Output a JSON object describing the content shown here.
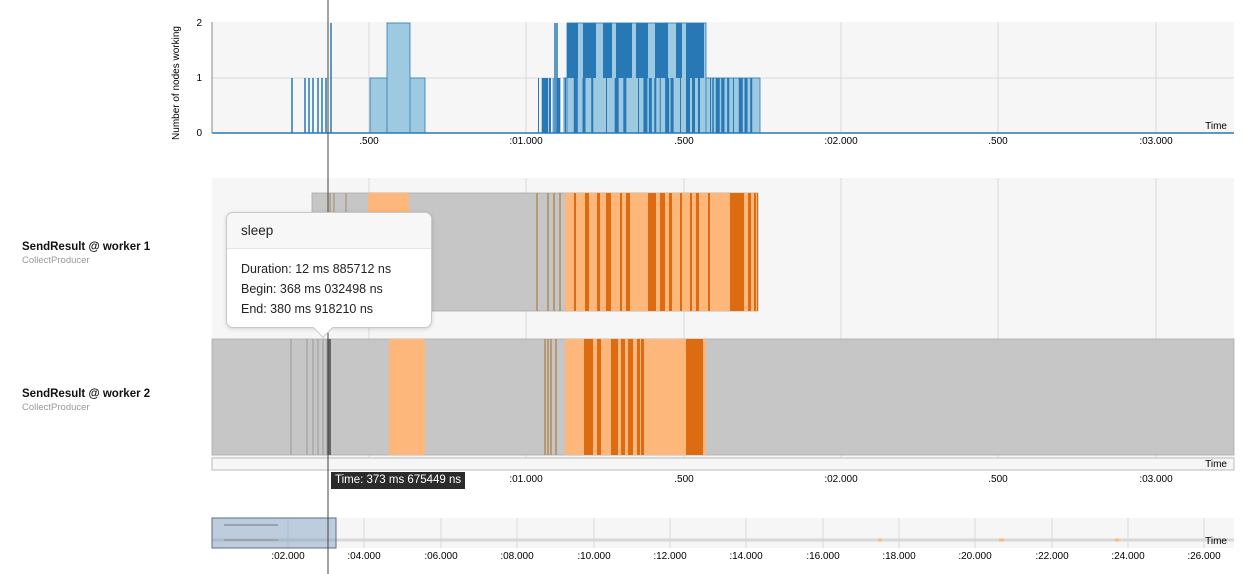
{
  "workload_chart": {
    "ylabel": "Number of nodes working",
    "y_ticks": [
      "2",
      "1",
      "0"
    ],
    "x_label": "Time",
    "x_ticks": [
      ".500",
      ":01.000",
      ".500",
      ":02.000",
      ".500",
      ":03.000"
    ]
  },
  "swimlanes": [
    {
      "title": "SendResult @ worker 1",
      "subtitle": "CollectProducer"
    },
    {
      "title": "SendResult @ worker 2",
      "subtitle": "CollectProducer"
    }
  ],
  "timeline": {
    "x_label": "Time",
    "x_ticks": [
      ".500",
      ":01.000",
      ".500",
      ":02.000",
      ".500",
      ":03.000"
    ]
  },
  "overview": {
    "x_label": "Time",
    "x_ticks": [
      ":02.000",
      ":04.000",
      ":06.000",
      ":08.000",
      ":10.000",
      ":12.000",
      ":14.000",
      ":16.000",
      ":18.000",
      ":20.000",
      ":22.000",
      ":24.000",
      ":26.000"
    ]
  },
  "tooltip": {
    "title": "sleep",
    "duration": "Duration: 12 ms 885712 ns",
    "begin": "Begin: 368 ms 032498 ns",
    "end": "End: 380 ms 918210 ns"
  },
  "cursor": {
    "time_label": "Time: 373 ms 675449 ns"
  },
  "colors": {
    "idle": "#c6c6c6",
    "light_orange": "#fdb77a",
    "dark_orange": "#dd6b12",
    "light_blue": "#9ecae1",
    "dark_blue": "#2878b6",
    "panel_bg": "#f6f6f6",
    "grid": "#d9d9d9"
  }
}
